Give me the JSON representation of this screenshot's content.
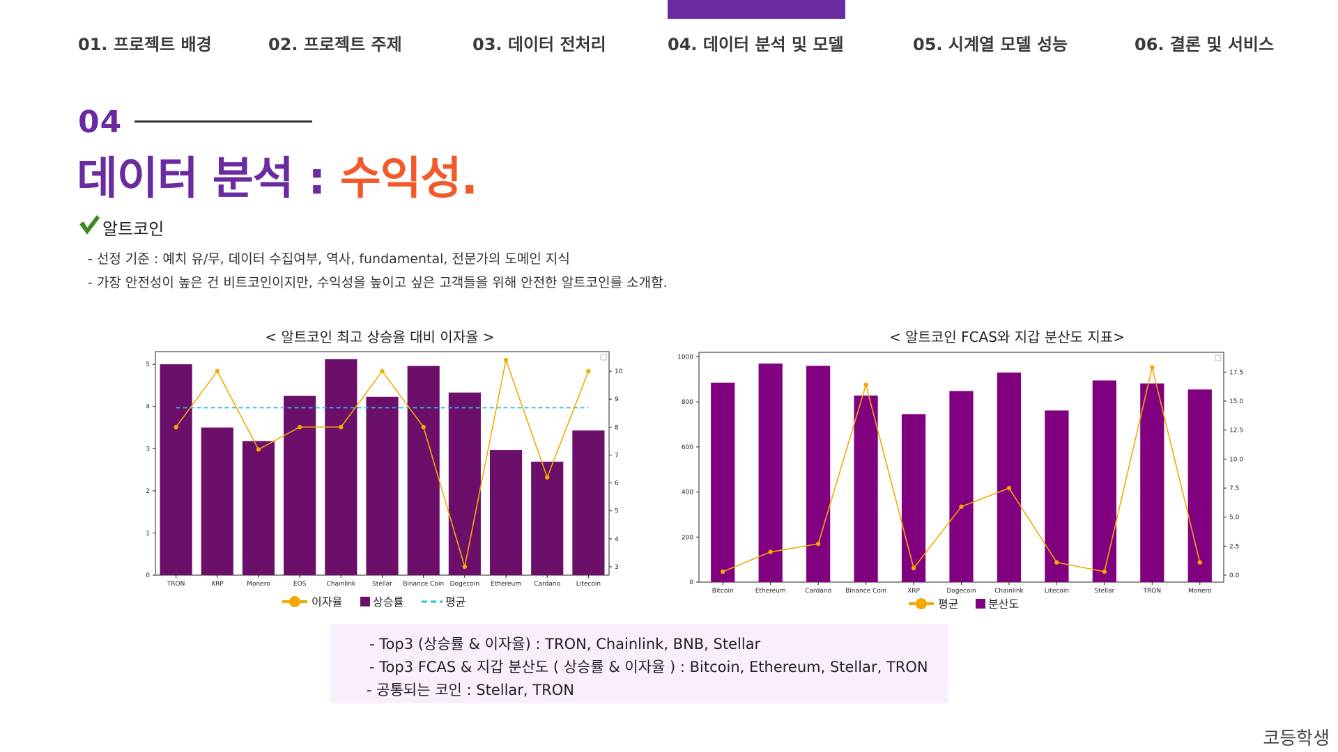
{
  "nav": {
    "items": [
      {
        "label": "01. 프로젝트 배경"
      },
      {
        "label": "02. 프로젝트 주제"
      },
      {
        "label": "03. 데이터 전처리"
      },
      {
        "label": "04. 데이터 분석 및 모델"
      },
      {
        "label": "05. 시계열 모델 성능"
      },
      {
        "label": "06. 결론 및 서비스"
      }
    ],
    "active_index": 3,
    "accent_color": "#6a2ba0"
  },
  "section": {
    "number": "04",
    "title_main": "데이터 분석 : ",
    "title_accent": "수익성.",
    "title_main_color": "#6a2ba0",
    "title_accent_color": "#f25a2a"
  },
  "intro": {
    "icon": "check-icon",
    "heading": "알트코인",
    "bullets": [
      "- 선정 기준 : 예치 유/무, 데이터 수집여부, 역사, fundamental, 전문가의 도메인 지식",
      "- 가장 안전성이 높은 건 비트코인이지만, 수익성을 높이고 싶은 고객들을 위해 안전한 알트코인를 소개함."
    ]
  },
  "chart_data": [
    {
      "type": "bar",
      "title": "< 알트코인 최고 상승율 대비 이자율 >",
      "categories": [
        "TRON",
        "XRP",
        "Monero",
        "EOS",
        "Chainlink",
        "Stellar",
        "Binance Coin",
        "Dogecoin",
        "Ethereum",
        "Cardano",
        "Litecoin"
      ],
      "series": [
        {
          "name": "상승률",
          "kind": "bar",
          "axis": "left",
          "color": "#6b0f6b",
          "values": [
            5.0,
            3.5,
            3.18,
            4.25,
            5.12,
            4.23,
            4.96,
            4.33,
            2.97,
            2.69,
            3.43
          ]
        },
        {
          "name": "이자율",
          "kind": "line",
          "axis": "right",
          "color": "#f5a800",
          "values": [
            8.0,
            10.0,
            7.2,
            8.0,
            8.0,
            10.0,
            8.0,
            3.0,
            10.4,
            6.2,
            10.0
          ]
        },
        {
          "name": "평균",
          "kind": "hline",
          "axis": "left",
          "color": "#22bde0",
          "value": 3.97
        }
      ],
      "left_ylim": [
        0,
        5.3
      ],
      "left_yticks": [
        0,
        1,
        2,
        3,
        4,
        5
      ],
      "right_ylim": [
        2.7,
        10.7
      ],
      "right_yticks": [
        3,
        4,
        5,
        6,
        7,
        8,
        9,
        10
      ],
      "legend_placement": "bottom-center"
    },
    {
      "type": "bar",
      "title": "< 알트코인 FCAS와 지갑 분산도 지표>",
      "categories": [
        "Bitcoin",
        "Ethereum",
        "Cardano",
        "Binance Coin",
        "XRP",
        "Dogecoin",
        "Chainlink",
        "Litecoin",
        "Stellar",
        "TRON",
        "Monero"
      ],
      "series": [
        {
          "name": "분산도",
          "kind": "bar",
          "axis": "left",
          "color": "#800080",
          "values": [
            885,
            970,
            960,
            828,
            745,
            848,
            930,
            762,
            895,
            882,
            855
          ]
        },
        {
          "name": "평균",
          "kind": "line",
          "axis": "right",
          "color": "#f5a800",
          "values": [
            0.3,
            2.0,
            2.7,
            16.4,
            0.6,
            5.9,
            7.5,
            1.1,
            0.3,
            17.9,
            1.1
          ]
        }
      ],
      "left_ylim": [
        0,
        1020
      ],
      "left_yticks": [
        0,
        200,
        400,
        600,
        800,
        1000
      ],
      "right_ylim": [
        -0.6,
        19.2
      ],
      "right_yticks": [
        "0.0",
        "2.5",
        "5.0",
        "7.5",
        "10.0",
        "12.5",
        "15.0",
        "17.5"
      ],
      "legend_placement": "bottom-center"
    }
  ],
  "summary": {
    "lines": [
      "- Top3 (상승률 & 이자율) : TRON, Chainlink, BNB, Stellar",
      "- Top3 FCAS & 지갑 분산도 ( 상승률 & 이자율 ) : Bitcoin, Ethereum, Stellar, TRON",
      "- 공통되는 코인 : Stellar, TRON"
    ]
  },
  "footer": {
    "brand": "코등학생"
  }
}
